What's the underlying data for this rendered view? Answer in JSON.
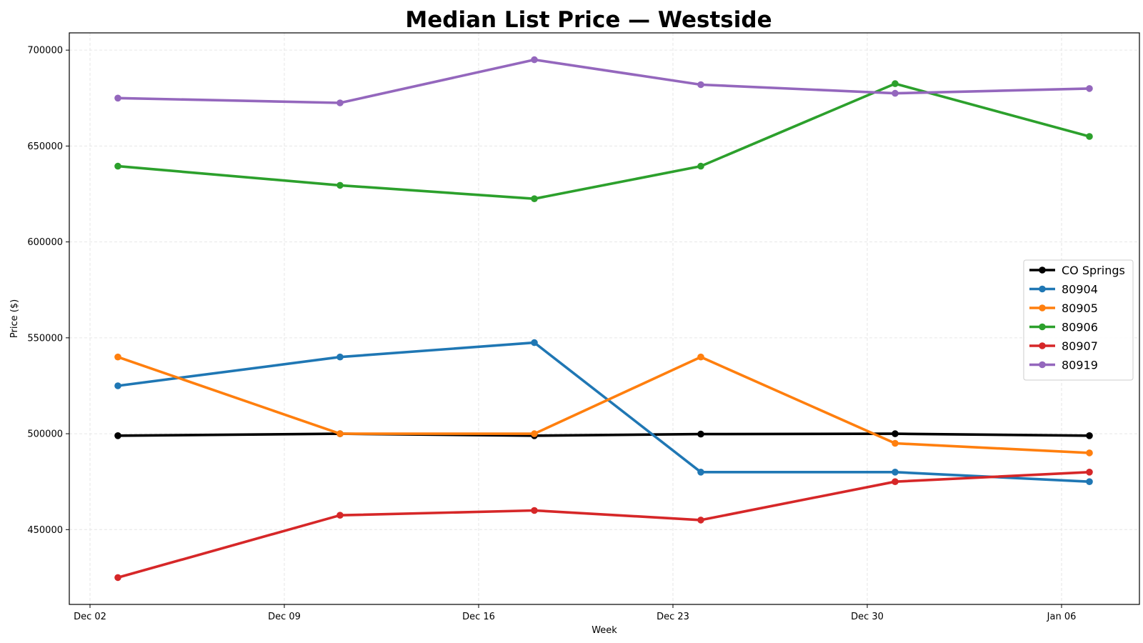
{
  "chart_data": {
    "type": "line",
    "title": "Median List Price — Westside",
    "xlabel": "Week",
    "ylabel": "Price ($)",
    "x": [
      "Dec 03",
      "Dec 11",
      "Dec 18",
      "Dec 24",
      "Dec 31",
      "Jan 07"
    ],
    "x_ticks": [
      "Dec 02",
      "Dec 09",
      "Dec 16",
      "Dec 23",
      "Dec 30",
      "Jan 06"
    ],
    "y_ticks": [
      "450000",
      "500000",
      "550000",
      "600000",
      "650000",
      "700000"
    ],
    "ylim": [
      411000,
      709000
    ],
    "grid": true,
    "legend_position": "center-right",
    "series": [
      {
        "name": "CO Springs",
        "color": "#000000",
        "values": [
          499000,
          500000,
          499000,
          499800,
          500000,
          499000
        ]
      },
      {
        "name": "80904",
        "color": "#1f77b4",
        "values": [
          525000,
          540000,
          547500,
          480000,
          480000,
          475000
        ]
      },
      {
        "name": "80905",
        "color": "#ff7f0e",
        "values": [
          540000,
          500000,
          500000,
          540000,
          495000,
          490000
        ]
      },
      {
        "name": "80906",
        "color": "#2ca02c",
        "values": [
          639500,
          629500,
          622500,
          639500,
          682500,
          655000
        ]
      },
      {
        "name": "80907",
        "color": "#d62728",
        "values": [
          425000,
          457500,
          460000,
          455000,
          475000,
          480000
        ]
      },
      {
        "name": "80919",
        "color": "#9467bd",
        "values": [
          675000,
          672500,
          695000,
          682000,
          677500,
          680000
        ]
      }
    ]
  }
}
